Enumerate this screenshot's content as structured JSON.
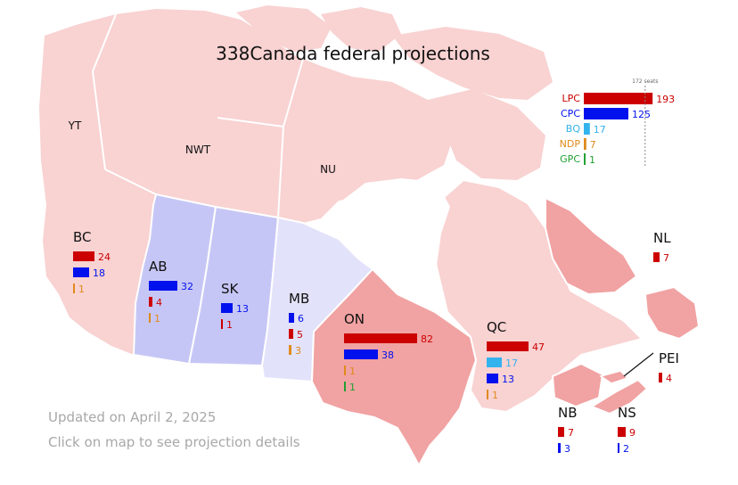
{
  "title": "338Canada federal projections",
  "footer": {
    "updated": "Updated on April 2, 2025",
    "hint": "Click on map to see projection details"
  },
  "colors": {
    "LPC": "#cc0000",
    "CPC": "#0011ee",
    "BQ": "#33b3ee",
    "NDP": "#e08a1c",
    "GPC": "#22a033",
    "map_liberal_light": "#f9d2d2",
    "map_liberal_mid": "#f1a2a2",
    "map_cpc_mid": "#c6c6f6",
    "map_cpc_light": "#e2e2fa",
    "map_border": "#ffffff"
  },
  "chart_data": {
    "type": "bar",
    "title": "338Canada federal projections",
    "majority_marker": "172 seats",
    "national": {
      "categories": [
        "LPC",
        "CPC",
        "BQ",
        "NDP",
        "GPC"
      ],
      "values": [
        193,
        125,
        17,
        7,
        1
      ]
    },
    "territory_labels": [
      "YT",
      "NWT",
      "NU"
    ],
    "regions": [
      {
        "name": "BC",
        "parties": [
          "LPC",
          "CPC",
          "NDP"
        ],
        "values": [
          24,
          18,
          1
        ]
      },
      {
        "name": "AB",
        "parties": [
          "CPC",
          "LPC",
          "NDP"
        ],
        "values": [
          32,
          4,
          1
        ]
      },
      {
        "name": "SK",
        "parties": [
          "CPC",
          "LPC"
        ],
        "values": [
          13,
          1
        ]
      },
      {
        "name": "MB",
        "parties": [
          "CPC",
          "LPC",
          "NDP"
        ],
        "values": [
          6,
          5,
          3
        ]
      },
      {
        "name": "ON",
        "parties": [
          "LPC",
          "CPC",
          "NDP",
          "GPC"
        ],
        "values": [
          82,
          38,
          1,
          1
        ]
      },
      {
        "name": "QC",
        "parties": [
          "LPC",
          "BQ",
          "CPC",
          "NDP"
        ],
        "values": [
          47,
          17,
          13,
          1
        ]
      },
      {
        "name": "NL",
        "parties": [
          "LPC"
        ],
        "values": [
          7
        ]
      },
      {
        "name": "PEI",
        "parties": [
          "LPC"
        ],
        "values": [
          4
        ]
      },
      {
        "name": "NB",
        "parties": [
          "LPC",
          "CPC"
        ],
        "values": [
          7,
          3
        ]
      },
      {
        "name": "NS",
        "parties": [
          "LPC",
          "CPC"
        ],
        "values": [
          9,
          2
        ]
      }
    ]
  }
}
